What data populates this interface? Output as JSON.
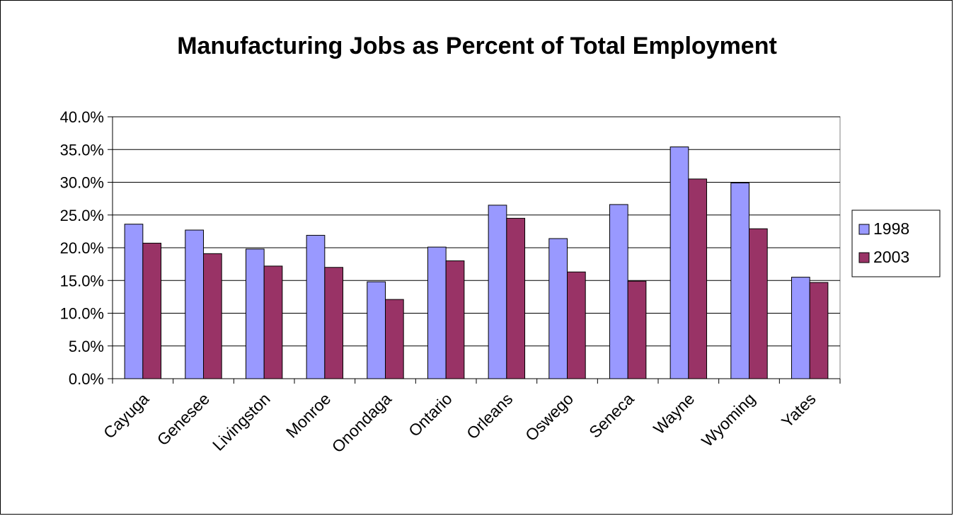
{
  "chart_data": {
    "type": "bar",
    "title": "Manufacturing Jobs as Percent of Total Employment",
    "categories": [
      "Cayuga",
      "Genesee",
      "Livingston",
      "Monroe",
      "Onondaga",
      "Ontario",
      "Orleans",
      "Oswego",
      "Seneca",
      "Wayne",
      "Wyoming",
      "Yates"
    ],
    "series": [
      {
        "name": "1998",
        "color": "#9999ff",
        "values": [
          23.6,
          22.7,
          19.8,
          21.9,
          14.8,
          20.1,
          26.5,
          21.4,
          26.6,
          35.4,
          29.9,
          15.5
        ]
      },
      {
        "name": "2003",
        "color": "#993366",
        "values": [
          20.7,
          19.1,
          17.2,
          17.0,
          12.1,
          18.0,
          24.5,
          16.3,
          14.9,
          30.5,
          22.9,
          14.7
        ]
      }
    ],
    "y_ticks": [
      "0.0%",
      "5.0%",
      "10.0%",
      "15.0%",
      "20.0%",
      "25.0%",
      "30.0%",
      "35.0%",
      "40.0%"
    ],
    "ylim": [
      0,
      40
    ],
    "xlabel": "",
    "ylabel": "",
    "grid": true,
    "legend": "right"
  }
}
